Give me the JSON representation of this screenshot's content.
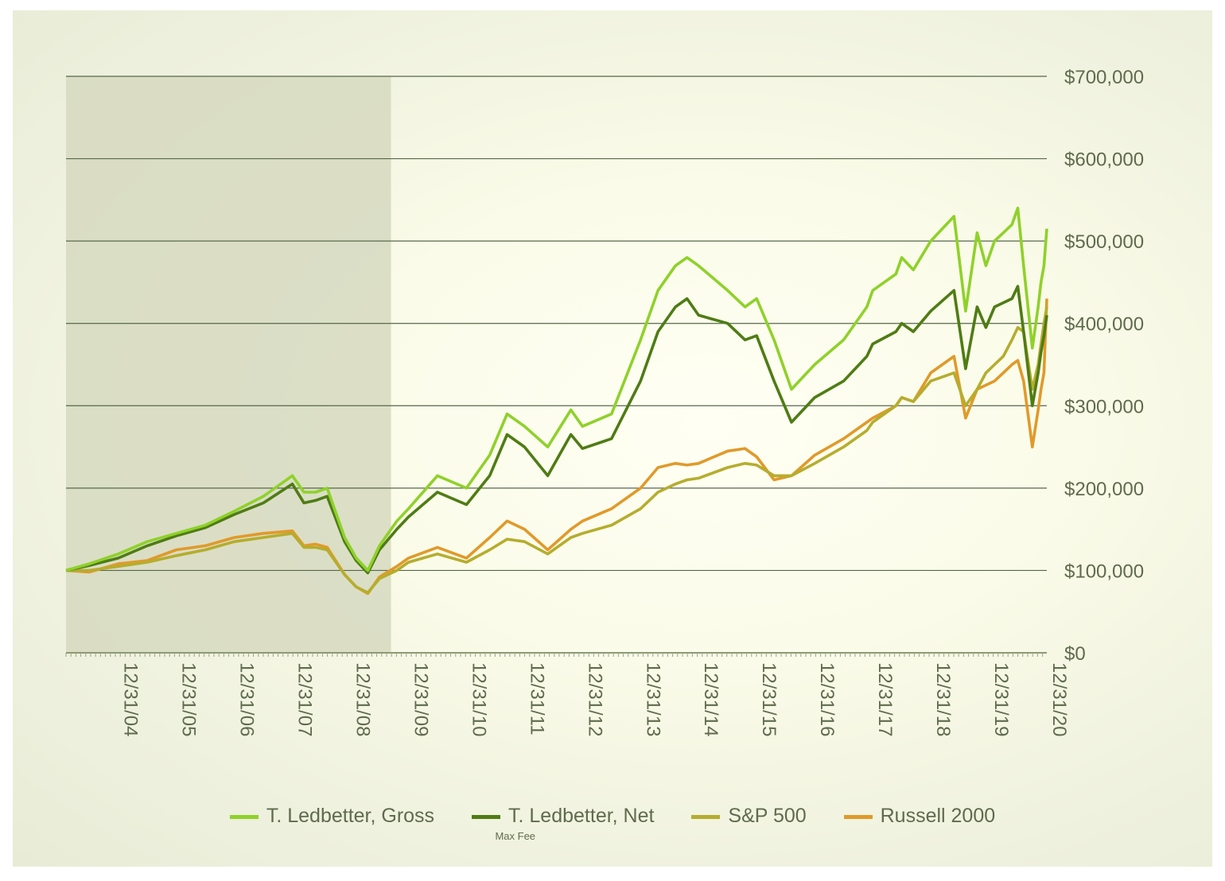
{
  "chart_data": {
    "type": "line",
    "y_tick_labels": [
      "$0",
      "$100,000",
      "$200,000",
      "$300,000",
      "$400,000",
      "$500,000",
      "$600,000",
      "$700,000"
    ],
    "y_tick_values": [
      0,
      100000,
      200000,
      300000,
      400000,
      500000,
      600000,
      700000
    ],
    "ylim": [
      0,
      700000
    ],
    "x_tick_labels": [
      "12/31/04",
      "12/31/05",
      "12/31/06",
      "12/31/07",
      "12/31/08",
      "12/31/09",
      "12/31/10",
      "12/31/11",
      "12/31/12",
      "12/31/13",
      "12/31/14",
      "12/31/15",
      "12/31/16",
      "12/31/17",
      "12/31/18",
      "12/31/19",
      "12/31/20"
    ],
    "x_tick_values": [
      2004.0,
      2005.0,
      2006.0,
      2007.0,
      2008.0,
      2009.0,
      2010.0,
      2011.0,
      2012.0,
      2013.0,
      2014.0,
      2015.0,
      2016.0,
      2017.0,
      2018.0,
      2019.0,
      2020.0
    ],
    "xlim": [
      2003.1,
      2020.0
    ],
    "shaded_region": [
      2003.1,
      2008.7
    ],
    "y_axis_side": "right",
    "grid": true,
    "legend_position": "bottom",
    "series": [
      {
        "name": "T. Ledbetter, Gross",
        "sublabel": "Max Fee",
        "color": "#8fd12a",
        "x": [
          2003.1,
          2003.5,
          2004.0,
          2004.5,
          2005.0,
          2005.5,
          2006.0,
          2006.5,
          2007.0,
          2007.2,
          2007.4,
          2007.6,
          2007.9,
          2008.1,
          2008.3,
          2008.5,
          2008.8,
          2009.0,
          2009.5,
          2010.0,
          2010.4,
          2010.7,
          2011.0,
          2011.4,
          2011.8,
          2012.0,
          2012.5,
          2013.0,
          2013.3,
          2013.6,
          2013.8,
          2014.0,
          2014.5,
          2014.8,
          2015.0,
          2015.3,
          2015.6,
          2016.0,
          2016.5,
          2016.9,
          2017.0,
          2017.4,
          2017.5,
          2017.7,
          2018.0,
          2018.4,
          2018.6,
          2018.8,
          2018.95,
          2019.1,
          2019.25,
          2019.4,
          2019.5,
          2019.6,
          2019.75,
          2019.85,
          2019.9,
          2019.95,
          2020.0
        ],
        "y": [
          100000,
          108000,
          120000,
          135000,
          145000,
          155000,
          172000,
          190000,
          215000,
          195000,
          195000,
          200000,
          140000,
          115000,
          100000,
          130000,
          160000,
          175000,
          215000,
          200000,
          240000,
          290000,
          275000,
          250000,
          295000,
          275000,
          290000,
          380000,
          440000,
          470000,
          480000,
          470000,
          440000,
          420000,
          430000,
          380000,
          320000,
          350000,
          380000,
          420000,
          440000,
          460000,
          480000,
          465000,
          500000,
          530000,
          415000,
          510000,
          470000,
          500000,
          510000,
          520000,
          540000,
          470000,
          370000,
          420000,
          450000,
          470000,
          515000
        ]
      },
      {
        "name": "T. Ledbetter, Net",
        "color": "#4f7c14",
        "x": [
          2003.1,
          2003.5,
          2004.0,
          2004.5,
          2005.0,
          2005.5,
          2006.0,
          2006.5,
          2007.0,
          2007.2,
          2007.4,
          2007.6,
          2007.9,
          2008.1,
          2008.3,
          2008.5,
          2008.8,
          2009.0,
          2009.5,
          2010.0,
          2010.4,
          2010.7,
          2011.0,
          2011.4,
          2011.8,
          2012.0,
          2012.5,
          2013.0,
          2013.3,
          2013.6,
          2013.8,
          2014.0,
          2014.5,
          2014.8,
          2015.0,
          2015.3,
          2015.6,
          2016.0,
          2016.5,
          2016.9,
          2017.0,
          2017.4,
          2017.5,
          2017.7,
          2018.0,
          2018.4,
          2018.6,
          2018.8,
          2018.95,
          2019.1,
          2019.25,
          2019.4,
          2019.5,
          2019.6,
          2019.75,
          2019.85,
          2019.9,
          2019.95,
          2020.0
        ],
        "y": [
          100000,
          106000,
          115000,
          130000,
          142000,
          152000,
          168000,
          182000,
          205000,
          182000,
          185000,
          190000,
          135000,
          112000,
          97000,
          125000,
          150000,
          165000,
          195000,
          180000,
          215000,
          265000,
          250000,
          215000,
          265000,
          248000,
          260000,
          330000,
          390000,
          420000,
          430000,
          410000,
          400000,
          380000,
          385000,
          330000,
          280000,
          310000,
          330000,
          360000,
          375000,
          390000,
          400000,
          390000,
          415000,
          440000,
          345000,
          420000,
          395000,
          420000,
          425000,
          430000,
          445000,
          390000,
          300000,
          340000,
          365000,
          385000,
          410000
        ]
      },
      {
        "name": "S&P 500",
        "color": "#b5ad2e",
        "x": [
          2003.1,
          2003.5,
          2004.0,
          2004.5,
          2005.0,
          2005.5,
          2006.0,
          2006.5,
          2007.0,
          2007.2,
          2007.4,
          2007.6,
          2007.9,
          2008.1,
          2008.3,
          2008.5,
          2008.8,
          2009.0,
          2009.5,
          2010.0,
          2010.4,
          2010.7,
          2011.0,
          2011.4,
          2011.8,
          2012.0,
          2012.5,
          2013.0,
          2013.3,
          2013.6,
          2013.8,
          2014.0,
          2014.5,
          2014.8,
          2015.0,
          2015.3,
          2015.6,
          2016.0,
          2016.5,
          2016.9,
          2017.0,
          2017.4,
          2017.5,
          2017.7,
          2018.0,
          2018.4,
          2018.6,
          2018.8,
          2018.95,
          2019.1,
          2019.25,
          2019.4,
          2019.5,
          2019.6,
          2019.75,
          2019.85,
          2019.9,
          2019.95,
          2020.0
        ],
        "y": [
          100000,
          100000,
          105000,
          110000,
          118000,
          125000,
          135000,
          140000,
          145000,
          128000,
          128000,
          125000,
          95000,
          80000,
          73000,
          90000,
          100000,
          110000,
          120000,
          110000,
          125000,
          138000,
          135000,
          120000,
          140000,
          145000,
          155000,
          175000,
          195000,
          205000,
          210000,
          212000,
          225000,
          230000,
          228000,
          215000,
          215000,
          230000,
          250000,
          270000,
          280000,
          300000,
          310000,
          305000,
          330000,
          340000,
          300000,
          320000,
          340000,
          350000,
          360000,
          380000,
          395000,
          390000,
          320000,
          350000,
          375000,
          400000,
          420000
        ]
      },
      {
        "name": "Russell 2000",
        "color": "#e09a2a",
        "x": [
          2003.1,
          2003.5,
          2004.0,
          2004.5,
          2005.0,
          2005.5,
          2006.0,
          2006.5,
          2007.0,
          2007.2,
          2007.4,
          2007.6,
          2007.9,
          2008.1,
          2008.3,
          2008.5,
          2008.8,
          2009.0,
          2009.5,
          2010.0,
          2010.4,
          2010.7,
          2011.0,
          2011.4,
          2011.8,
          2012.0,
          2012.5,
          2013.0,
          2013.3,
          2013.6,
          2013.8,
          2014.0,
          2014.5,
          2014.8,
          2015.0,
          2015.3,
          2015.6,
          2016.0,
          2016.5,
          2016.9,
          2017.0,
          2017.4,
          2017.5,
          2017.7,
          2018.0,
          2018.4,
          2018.6,
          2018.8,
          2018.95,
          2019.1,
          2019.25,
          2019.4,
          2019.5,
          2019.6,
          2019.75,
          2019.85,
          2019.9,
          2019.95,
          2020.0
        ],
        "y": [
          100000,
          98000,
          108000,
          112000,
          125000,
          130000,
          140000,
          145000,
          148000,
          130000,
          132000,
          128000,
          95000,
          80000,
          72000,
          92000,
          105000,
          115000,
          128000,
          115000,
          140000,
          160000,
          150000,
          125000,
          150000,
          160000,
          175000,
          200000,
          225000,
          230000,
          228000,
          230000,
          245000,
          248000,
          238000,
          210000,
          215000,
          240000,
          260000,
          280000,
          285000,
          300000,
          310000,
          305000,
          340000,
          360000,
          285000,
          320000,
          325000,
          330000,
          340000,
          350000,
          355000,
          330000,
          250000,
          295000,
          320000,
          340000,
          430000
        ]
      }
    ]
  }
}
